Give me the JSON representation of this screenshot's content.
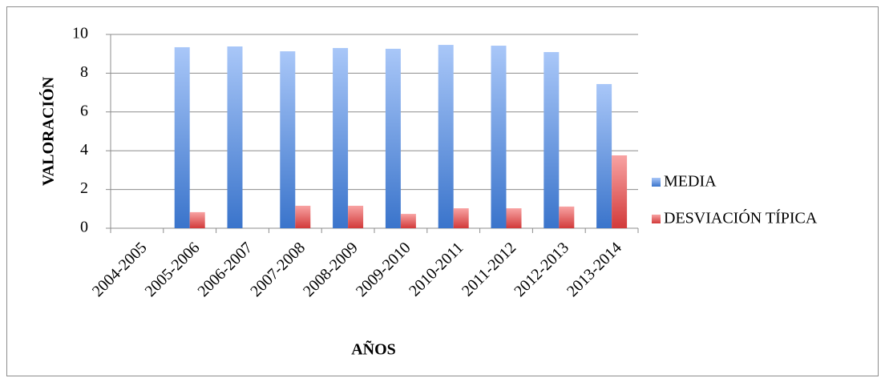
{
  "chart_data": {
    "type": "bar",
    "x_label": "AÑOS",
    "y_label": "VALORACIÓN",
    "categories": [
      "2004-2005",
      "2005-2006",
      "2006-2007",
      "2007-2008",
      "2008-2009",
      "2009-2010",
      "2010-2011",
      "2011-2012",
      "2012-2013",
      "2013-2014"
    ],
    "series": [
      {
        "name": "MEDIA",
        "color": "#5b8fdc",
        "values": [
          null,
          9.34,
          9.38,
          9.13,
          9.3,
          9.26,
          9.46,
          9.42,
          9.09,
          7.44
        ]
      },
      {
        "name": "DESVIACIÓN TÍPICA",
        "color": "#e55a5a",
        "values": [
          null,
          0.83,
          null,
          1.16,
          1.16,
          0.74,
          1.03,
          1.03,
          1.12,
          3.76
        ]
      }
    ],
    "ylim": [
      0,
      10
    ],
    "yticks": [
      0,
      2,
      4,
      6,
      8,
      10
    ],
    "grid": true,
    "legend": "right"
  }
}
